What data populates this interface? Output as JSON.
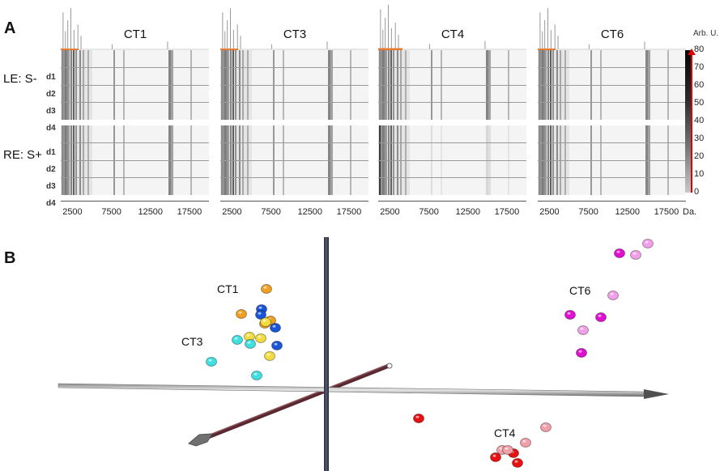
{
  "panel_a": {
    "letter": "A",
    "row_groups": [
      {
        "label": "LE: S-",
        "rows": [
          "d1",
          "d2",
          "d3",
          "d4"
        ]
      },
      {
        "label": "RE: S+",
        "rows": [
          "d1",
          "d2",
          "d3",
          "d4"
        ]
      }
    ],
    "panels": [
      "CT1",
      "CT3",
      "CT4",
      "CT6"
    ],
    "x_ticks": [
      "2500",
      "7500",
      "12500",
      "17500"
    ],
    "x_unit": "Da.",
    "colorbar": {
      "title": "Arb. U.",
      "ticks": [
        "80",
        "70",
        "60",
        "50",
        "40",
        "30",
        "20",
        "10",
        "0"
      ],
      "range": [
        0,
        80
      ],
      "indicator_color": "#e00000"
    }
  },
  "panel_b": {
    "letter": "B",
    "cluster_labels": [
      "CT1",
      "CT3",
      "CT6",
      "CT4"
    ]
  },
  "chart_data": [
    {
      "type": "heatmap",
      "title": "Protein profiles (gel view) per cell type",
      "panels": [
        "CT1",
        "CT3",
        "CT4",
        "CT6"
      ],
      "rows": [
        "LE: S- d1",
        "LE: S- d2",
        "LE: S- d3",
        "LE: S- d4",
        "RE: S+ d1",
        "RE: S+ d2",
        "RE: S+ d3",
        "RE: S+ d4"
      ],
      "xlabel": "Da.",
      "x_ticks": [
        2500,
        7500,
        12500,
        17500
      ],
      "xlim": [
        1000,
        20000
      ],
      "colorbar": {
        "label": "Arb. U.",
        "range": [
          0,
          80
        ],
        "ticks": [
          0,
          10,
          20,
          30,
          40,
          50,
          60,
          70,
          80
        ]
      }
    },
    {
      "type": "scatter",
      "title": "3D PCA of spectra",
      "xlabel": "",
      "ylabel": "",
      "series": [
        {
          "name": "CT1 (orange)",
          "color": "#f0a020",
          "points": [
            [
              329,
              357
            ],
            [
              298,
              388
            ],
            [
              327,
              400
            ],
            [
              334,
              396
            ]
          ]
        },
        {
          "name": "CT1 (blue)",
          "color": "#1a55d8",
          "points": [
            [
              323,
              382
            ],
            [
              322,
              389
            ],
            [
              340,
              405
            ],
            [
              342,
              427
            ]
          ]
        },
        {
          "name": "CT3 (yellow)",
          "color": "#f2dc40",
          "points": [
            [
              308,
              416
            ],
            [
              322,
              418
            ],
            [
              333,
              440
            ],
            [
              328,
              398
            ]
          ]
        },
        {
          "name": "CT3 (cyan)",
          "color": "#40e0e0",
          "points": [
            [
              293,
              420
            ],
            [
              309,
              425
            ],
            [
              261,
              447
            ],
            [
              317,
              464
            ]
          ]
        },
        {
          "name": "CT6 (magenta)",
          "color": "#e010d0",
          "points": [
            [
              765,
              313
            ],
            [
              704,
              389
            ],
            [
              742,
              392
            ],
            [
              718,
              436
            ]
          ]
        },
        {
          "name": "CT6 (light pink)",
          "color": "#f0a0e8",
          "points": [
            [
              800,
              301
            ],
            [
              785,
              315
            ],
            [
              757,
              365
            ],
            [
              720,
              408
            ]
          ]
        },
        {
          "name": "CT4 (red)",
          "color": "#e81010",
          "points": [
            [
              517,
              517
            ],
            [
              634,
              560
            ],
            [
              612,
              565
            ],
            [
              639,
              572
            ]
          ]
        },
        {
          "name": "CT4 (salmon)",
          "color": "#f0a0a8",
          "points": [
            [
              674,
              528
            ],
            [
              649,
              547
            ],
            [
              620,
              556
            ],
            [
              627,
              556
            ]
          ]
        }
      ]
    }
  ]
}
